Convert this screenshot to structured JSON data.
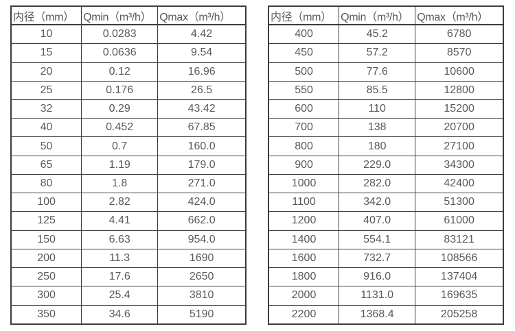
{
  "colors": {
    "background": "#ffffff",
    "table_border": "#3c3c3c",
    "table_text": "#595959"
  },
  "tables": [
    {
      "name": "small-diameter-flow-table",
      "headers": [
        "内径（mm）",
        "Qmin（m³/h）",
        "Qmax（m³/h）"
      ],
      "rows": [
        [
          "10",
          "0.0283",
          "4.42"
        ],
        [
          "15",
          "0.0636",
          "9.54"
        ],
        [
          "20",
          "0.12",
          "16.96"
        ],
        [
          "25",
          "0.176",
          "26.5"
        ],
        [
          "32",
          "0.29",
          "43.42"
        ],
        [
          "40",
          "0.452",
          "67.85"
        ],
        [
          "50",
          "0.7",
          "160.0"
        ],
        [
          "65",
          "1.19",
          "179.0"
        ],
        [
          "80",
          "1.8",
          "271.0"
        ],
        [
          "100",
          "2.82",
          "424.0"
        ],
        [
          "125",
          "4.41",
          "662.0"
        ],
        [
          "150",
          "6.63",
          "954.0"
        ],
        [
          "200",
          "11.3",
          "1690"
        ],
        [
          "250",
          "17.6",
          "2650"
        ],
        [
          "300",
          "25.4",
          "3810"
        ],
        [
          "350",
          "34.6",
          "5190"
        ]
      ]
    },
    {
      "name": "large-diameter-flow-table",
      "headers": [
        "内径（mm）",
        "Qmin（m³/h）",
        "Qmax（m³/h）"
      ],
      "rows": [
        [
          "400",
          "45.2",
          "6780"
        ],
        [
          "450",
          "57.2",
          "8570"
        ],
        [
          "500",
          "77.6",
          "10600"
        ],
        [
          "550",
          "85.5",
          "12800"
        ],
        [
          "600",
          "110",
          "15200"
        ],
        [
          "700",
          "138",
          "20700"
        ],
        [
          "800",
          "180",
          "27100"
        ],
        [
          "900",
          "229.0",
          "34300"
        ],
        [
          "1000",
          "282.0",
          "42400"
        ],
        [
          "1100",
          "342.0",
          "51300"
        ],
        [
          "1200",
          "407.0",
          "61000"
        ],
        [
          "1400",
          "554.1",
          "83121"
        ],
        [
          "1600",
          "732.7",
          "108566"
        ],
        [
          "1800",
          "916.0",
          "137404"
        ],
        [
          "2000",
          "1131.0",
          "169635"
        ],
        [
          "2200",
          "1368.4",
          "205258"
        ]
      ]
    }
  ]
}
